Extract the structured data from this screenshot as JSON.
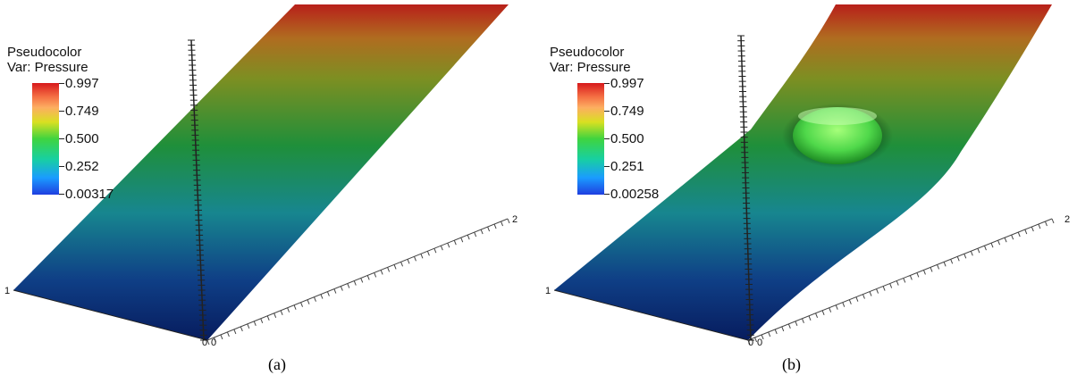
{
  "panels": [
    {
      "id": "a",
      "legend": {
        "title": "Pseudocolor",
        "var": "Var: Pressure",
        "ticks": [
          "0.997",
          "0.749",
          "0.500",
          "0.252",
          "0.00317"
        ]
      },
      "axis_labels": {
        "left": "1",
        "origin_a": "0",
        "origin_b": "0",
        "right": "2"
      },
      "caption": "(a)"
    },
    {
      "id": "b",
      "legend": {
        "title": "Pseudocolor",
        "var": "Var: Pressure",
        "ticks": [
          "0.997",
          "0.749",
          "0.500",
          "0.251",
          "0.00258"
        ]
      },
      "axis_labels": {
        "left": "1",
        "origin_a": "0",
        "origin_b": "0",
        "right": "2"
      },
      "caption": "(b)"
    }
  ],
  "colors": {
    "high": "#c8201e",
    "mid": "#2e9a2e",
    "low": "#0a2a70",
    "background": "#ffffff"
  }
}
